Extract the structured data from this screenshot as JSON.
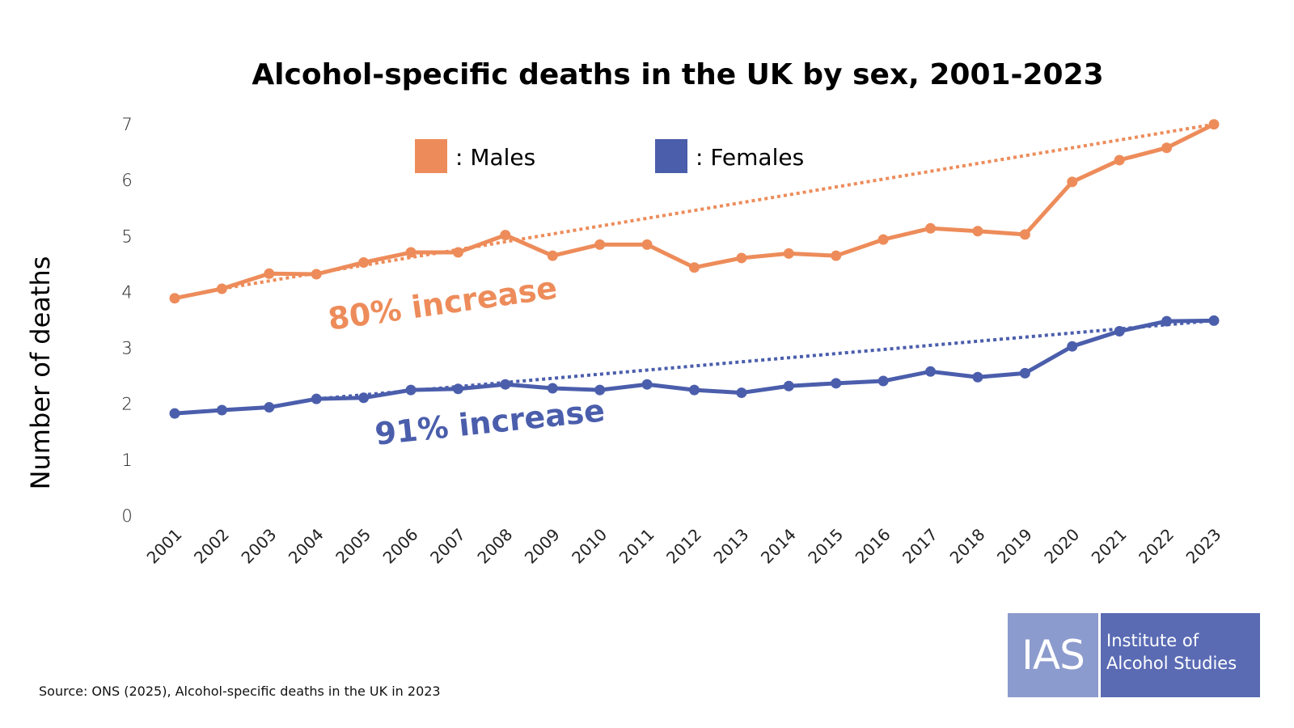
{
  "chart_data": {
    "type": "line",
    "title": "Alcohol-specific deaths in the UK by sex, 2001-2023",
    "xlabel": "",
    "ylabel": "Number of deaths",
    "ylim": [
      0,
      7
    ],
    "yticks": [
      "0",
      "1",
      "2",
      "3",
      "4",
      "5",
      "6",
      "7"
    ],
    "categories": [
      "2001",
      "2002",
      "2003",
      "2004",
      "2005",
      "2006",
      "2007",
      "2008",
      "2009",
      "2010",
      "2011",
      "2012",
      "2013",
      "2014",
      "2015",
      "2016",
      "2017",
      "2018",
      "2019",
      "2020",
      "2021",
      "2022",
      "2023"
    ],
    "grid": false,
    "legend_position": "top-center",
    "series": [
      {
        "name": "Males",
        "legend_label": ": Males",
        "color": "#ed8c5a",
        "values": [
          3.88,
          4.05,
          4.32,
          4.31,
          4.52,
          4.7,
          4.7,
          5.01,
          4.64,
          4.84,
          4.84,
          4.43,
          4.6,
          4.68,
          4.64,
          4.93,
          5.13,
          5.08,
          5.02,
          5.96,
          6.35,
          6.57,
          6.99
        ],
        "trend": {
          "from": "2002",
          "to": "2023",
          "from_value": 4.05,
          "to_value": 6.99
        },
        "annotation": "80% increase"
      },
      {
        "name": "Females",
        "legend_label": ": Females",
        "color": "#4b5eac",
        "values": [
          1.82,
          1.88,
          1.93,
          2.08,
          2.1,
          2.24,
          2.26,
          2.34,
          2.27,
          2.24,
          2.34,
          2.24,
          2.19,
          2.31,
          2.36,
          2.4,
          2.57,
          2.47,
          2.54,
          3.02,
          3.29,
          3.47,
          3.48
        ],
        "trend": {
          "from": "2004",
          "to": "2023",
          "from_value": 2.08,
          "to_value": 3.48
        },
        "annotation": "91% increase"
      }
    ]
  },
  "source": "Source: ONS (2025), Alcohol-specific deaths in the UK in 2023",
  "logo": {
    "abbr": "IAS",
    "line1": "Institute of",
    "line2": "Alcohol Studies",
    "colors": {
      "left": "#8c9bcd",
      "right": "#5a6bb4"
    }
  }
}
